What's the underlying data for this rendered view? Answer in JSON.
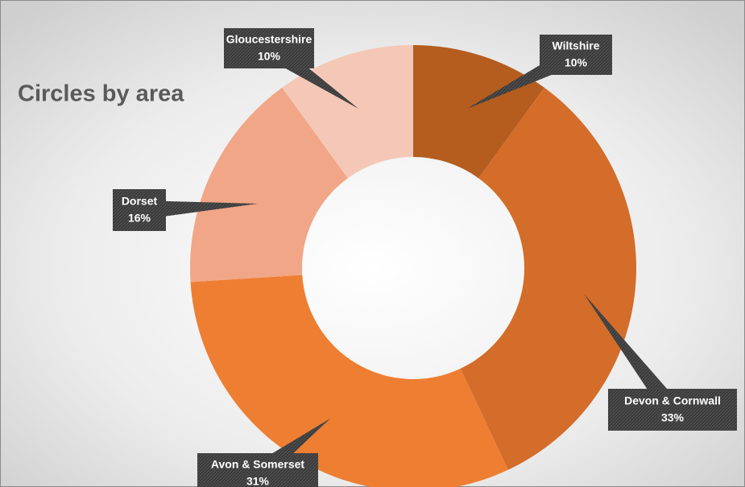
{
  "chart_data": {
    "type": "donut",
    "title": "Circles by area",
    "categories": [
      "Wiltshire",
      "Devon & Cornwall",
      "Avon & Somerset",
      "Dorset",
      "Gloucestershire"
    ],
    "values": [
      10,
      33,
      31,
      16,
      10
    ],
    "value_labels": [
      "10%",
      "33%",
      "31%",
      "16%",
      "10%"
    ],
    "colors": [
      "#b45d1f",
      "#d46c2a",
      "#ee7e32",
      "#f1a687",
      "#f5c7b6"
    ]
  }
}
